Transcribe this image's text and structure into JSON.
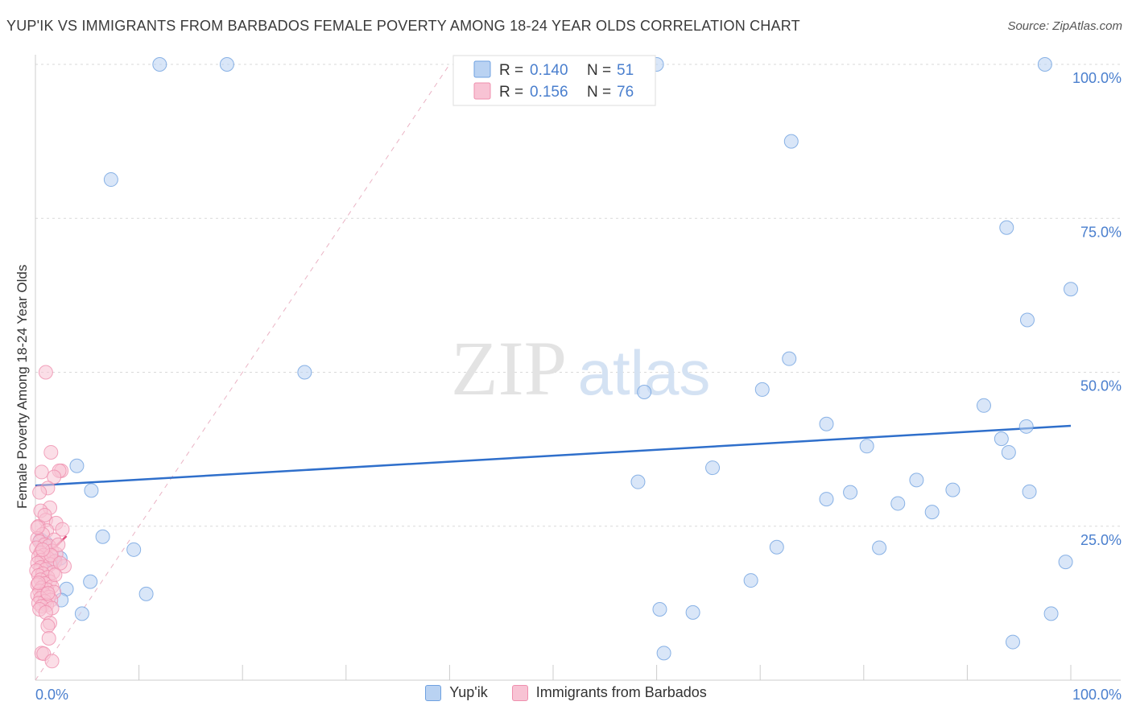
{
  "title": "YUP'IK VS IMMIGRANTS FROM BARBADOS FEMALE POVERTY AMONG 18-24 YEAR OLDS CORRELATION CHART",
  "source": "Source: ZipAtlas.com",
  "watermark": {
    "zip": "ZIP",
    "atlas": "atlas"
  },
  "stats_legend": [
    {
      "r_label": "R =",
      "r_value": "0.140",
      "n_label": "N =",
      "n_value": "51",
      "color": "#6fa1e0",
      "fill": "#b9d2f2"
    },
    {
      "r_label": "R =",
      "r_value": "0.156",
      "n_label": "N =",
      "n_value": "76",
      "color": "#ef8fae",
      "fill": "#f8c3d4"
    }
  ],
  "legend": [
    {
      "label": "Yup'ik",
      "color": "#b9d2f2",
      "border": "#6fa1e0"
    },
    {
      "label": "Immigrants from Barbados",
      "color": "#f8c3d4",
      "border": "#ef8fae"
    }
  ],
  "chart_data": {
    "type": "scatter",
    "title": "YUP'IK VS IMMIGRANTS FROM BARBADOS FEMALE POVERTY AMONG 18-24 YEAR OLDS CORRELATION CHART",
    "xlabel": "",
    "ylabel": "Female Poverty Among 18-24 Year Olds",
    "xlim": [
      0,
      100
    ],
    "ylim": [
      0,
      100
    ],
    "x_tick_labels": [
      "0.0%",
      "100.0%"
    ],
    "y_tick_labels": [
      "25.0%",
      "50.0%",
      "75.0%",
      "100.0%"
    ],
    "y_ticks": [
      25,
      50,
      75,
      100
    ],
    "series": [
      {
        "name": "Yup'ik",
        "color": "#6fa1e0",
        "fill": "#b9d2f2",
        "trend": {
          "x": [
            0,
            100
          ],
          "y": [
            31.6,
            41.3
          ]
        },
        "points": [
          [
            12,
            100
          ],
          [
            18.5,
            100
          ],
          [
            60,
            100
          ],
          [
            97.5,
            100
          ],
          [
            7.3,
            81.3
          ],
          [
            73,
            87.5
          ],
          [
            93.8,
            73.5
          ],
          [
            100,
            63.5
          ],
          [
            95.8,
            58.5
          ],
          [
            26,
            50
          ],
          [
            72.8,
            52.2
          ],
          [
            58.8,
            46.8
          ],
          [
            70.2,
            47.2
          ],
          [
            91.6,
            44.6
          ],
          [
            76.4,
            41.6
          ],
          [
            95.7,
            41.2
          ],
          [
            93.3,
            39.2
          ],
          [
            94,
            37
          ],
          [
            80.3,
            38
          ],
          [
            4,
            34.8
          ],
          [
            65.4,
            34.5
          ],
          [
            5.4,
            30.8
          ],
          [
            58.2,
            32.2
          ],
          [
            85.1,
            32.5
          ],
          [
            88.6,
            30.9
          ],
          [
            96,
            30.6
          ],
          [
            78.7,
            30.5
          ],
          [
            76.4,
            29.4
          ],
          [
            83.3,
            28.7
          ],
          [
            86.6,
            27.3
          ],
          [
            6.5,
            23.3
          ],
          [
            0.5,
            22.8
          ],
          [
            1,
            22.3
          ],
          [
            9.5,
            21.2
          ],
          [
            71.6,
            21.6
          ],
          [
            81.5,
            21.5
          ],
          [
            2.4,
            19.8
          ],
          [
            1.5,
            19.5
          ],
          [
            99.5,
            19.2
          ],
          [
            5.3,
            16
          ],
          [
            69.1,
            16.2
          ],
          [
            3,
            14.8
          ],
          [
            10.7,
            14
          ],
          [
            2.5,
            13
          ],
          [
            60.3,
            11.5
          ],
          [
            63.5,
            11
          ],
          [
            4.5,
            10.8
          ],
          [
            98.1,
            10.8
          ],
          [
            94.4,
            6.2
          ],
          [
            60.7,
            4.4
          ],
          [
            1.8,
            19.2
          ]
        ]
      },
      {
        "name": "Immigrants from Barbados",
        "color": "#ef8fae",
        "fill": "#f8c3d4",
        "trend": {
          "x": [
            0,
            3
          ],
          "y": [
            18.6,
            23.4
          ]
        },
        "diagonal": {
          "x": [
            0,
            40
          ],
          "y": [
            0,
            100
          ]
        },
        "points": [
          [
            1,
            50
          ],
          [
            1.5,
            37
          ],
          [
            2.5,
            34
          ],
          [
            2.3,
            34
          ],
          [
            0.6,
            33.8
          ],
          [
            1.8,
            33
          ],
          [
            1.2,
            31.2
          ],
          [
            0.4,
            30.5
          ],
          [
            1.4,
            28
          ],
          [
            0.5,
            27.5
          ],
          [
            1,
            26
          ],
          [
            2,
            25.5
          ],
          [
            0.3,
            25
          ],
          [
            2.6,
            24.5
          ],
          [
            1.1,
            24.3
          ],
          [
            0.7,
            23.7
          ],
          [
            0.2,
            23
          ],
          [
            1.8,
            22.8
          ],
          [
            0.4,
            22.5
          ],
          [
            0.9,
            22
          ],
          [
            1.3,
            21.8
          ],
          [
            0.1,
            21.5
          ],
          [
            1.6,
            21
          ],
          [
            0.5,
            20.7
          ],
          [
            2,
            20.5
          ],
          [
            0.8,
            20.3
          ],
          [
            0.3,
            20
          ],
          [
            1.2,
            19.8
          ],
          [
            0.6,
            19.5
          ],
          [
            1.9,
            19.3
          ],
          [
            0.2,
            19
          ],
          [
            1.4,
            18.8
          ],
          [
            2.8,
            18.5
          ],
          [
            0.5,
            18.3
          ],
          [
            1,
            18
          ],
          [
            0.1,
            17.8
          ],
          [
            1.7,
            17.5
          ],
          [
            0.7,
            17.3
          ],
          [
            0.3,
            17
          ],
          [
            1.2,
            16.7
          ],
          [
            0.5,
            16.3
          ],
          [
            1.4,
            16
          ],
          [
            0.9,
            15.7
          ],
          [
            0.2,
            15.5
          ],
          [
            1.6,
            15.2
          ],
          [
            0.6,
            15
          ],
          [
            1.1,
            14.7
          ],
          [
            0.4,
            14.5
          ],
          [
            1.8,
            14.3
          ],
          [
            0.8,
            14
          ],
          [
            0.2,
            13.8
          ],
          [
            1.3,
            13.5
          ],
          [
            0.5,
            13.3
          ],
          [
            1.5,
            13
          ],
          [
            0.9,
            12.8
          ],
          [
            0.3,
            12.5
          ],
          [
            1.1,
            12.2
          ],
          [
            0.6,
            12
          ],
          [
            1.6,
            11.7
          ],
          [
            0.4,
            11.5
          ],
          [
            1,
            11
          ],
          [
            1.4,
            9.3
          ],
          [
            1.2,
            8.8
          ],
          [
            1.3,
            6.8
          ],
          [
            0.6,
            4.4
          ],
          [
            0.8,
            4.3
          ],
          [
            1.6,
            3.1
          ],
          [
            0.2,
            24.8
          ],
          [
            2.2,
            22
          ],
          [
            0.9,
            26.8
          ],
          [
            1.5,
            20.3
          ],
          [
            2.4,
            19
          ],
          [
            0.3,
            15.8
          ],
          [
            1.9,
            17.1
          ],
          [
            0.7,
            21.2
          ],
          [
            1.2,
            14.1
          ]
        ]
      }
    ],
    "stats": [
      {
        "series": "Yup'ik",
        "R": 0.14,
        "N": 51
      },
      {
        "series": "Immigrants from Barbados",
        "R": 0.156,
        "N": 76
      }
    ]
  }
}
